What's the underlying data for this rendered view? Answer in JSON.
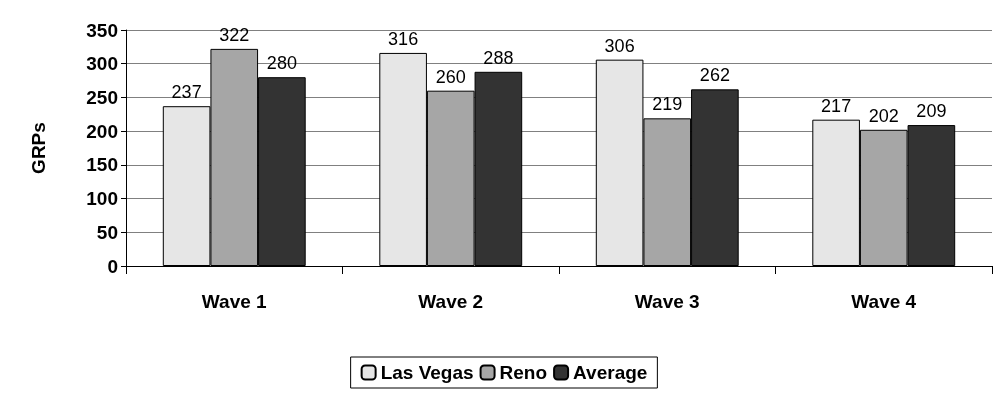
{
  "chart_data": {
    "type": "bar",
    "ylabel": "GRPs",
    "categories": [
      "Wave 1",
      "Wave 2",
      "Wave 3",
      "Wave 4"
    ],
    "series": [
      {
        "name": "Las Vegas",
        "color": "#e6e6e6",
        "values": [
          237,
          316,
          306,
          217
        ]
      },
      {
        "name": "Reno",
        "color": "#a6a6a6",
        "values": [
          322,
          260,
          219,
          202
        ]
      },
      {
        "name": "Average",
        "color": "#333333",
        "values": [
          280,
          288,
          262,
          209
        ]
      }
    ],
    "ylim": [
      0,
      350
    ],
    "yticks": [
      0,
      50,
      100,
      150,
      200,
      250,
      300,
      350
    ],
    "grid": "y",
    "legend": "bottom",
    "data_labels": true
  }
}
